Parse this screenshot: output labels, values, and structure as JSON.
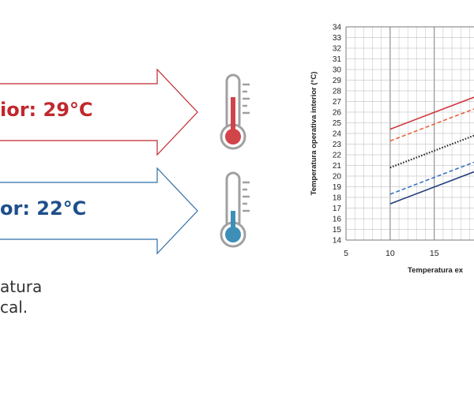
{
  "left_panel": {
    "hot_text": "ior: 29°C",
    "cold_text": "or: 22°C",
    "caption_line1": "atura",
    "caption_line2": "cal."
  },
  "colors": {
    "hot": "#c0282d",
    "cold": "#1d4f8c",
    "hot_arrow": "#c0282d",
    "cold_arrow": "#2f6da8",
    "thermo_hot": "#d0444a",
    "thermo_cold": "#3d8fb8",
    "thermo_body": "#a0a0a0"
  },
  "icons": {
    "hot": "thermometer-hot-icon",
    "cold": "thermometer-cold-icon"
  },
  "chart_data": {
    "type": "line",
    "ylabel": "Temperatura operativa interior (°C)",
    "xlabel": "Temperatura ex",
    "ylim": [
      14,
      34
    ],
    "xlim_visible": [
      5,
      19.5
    ],
    "x_ticks": [
      5,
      10,
      15
    ],
    "y_ticks": [
      14,
      15,
      16,
      17,
      18,
      19,
      20,
      21,
      22,
      23,
      24,
      25,
      26,
      27,
      28,
      29,
      30,
      31,
      32,
      33,
      34
    ],
    "grid": true,
    "series": [
      {
        "color": "#d0343a",
        "dash": "solid",
        "points": [
          [
            10,
            24.4
          ],
          [
            19.5,
            27.4
          ]
        ]
      },
      {
        "color": "#e8643a",
        "dash": "dashed",
        "points": [
          [
            10,
            23.3
          ],
          [
            19.5,
            26.3
          ]
        ]
      },
      {
        "color": "#222222",
        "dash": "dotted",
        "points": [
          [
            10,
            20.8
          ],
          [
            19.5,
            23.8
          ]
        ]
      },
      {
        "color": "#3a72c4",
        "dash": "dashed",
        "points": [
          [
            10,
            18.3
          ],
          [
            19.5,
            21.3
          ]
        ]
      },
      {
        "color": "#1f3c7c",
        "dash": "solid",
        "points": [
          [
            10,
            17.4
          ],
          [
            19.5,
            20.4
          ]
        ]
      }
    ]
  }
}
